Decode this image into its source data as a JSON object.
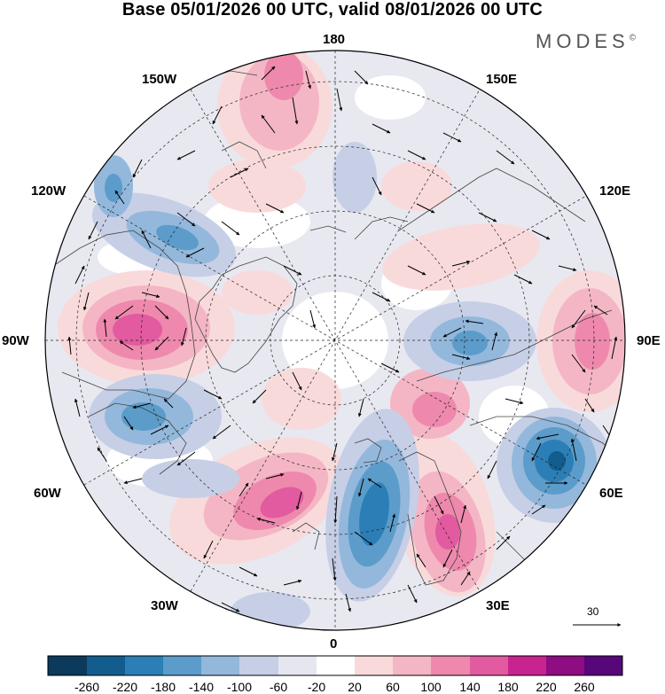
{
  "title": "Base 05/01/2026 00 UTC, valid 08/01/2026 00 UTC",
  "brand": "MODES",
  "brand_mark": "©",
  "longitude_labels": {
    "n180": "180",
    "w150": "150W",
    "e150": "150E",
    "w120": "120W",
    "e120": "120E",
    "w90": "90W",
    "e90": "90E",
    "w60": "60W",
    "e60": "60E",
    "w30": "30W",
    "e30": "30E",
    "s0": "0"
  },
  "reference_vector": "30",
  "colorbar": {
    "ticks": [
      "-260",
      "-220",
      "-180",
      "-140",
      "-100",
      "-60",
      "-20",
      "20",
      "60",
      "100",
      "140",
      "180",
      "220",
      "260"
    ],
    "colors": [
      "#0b3a5c",
      "#125d8e",
      "#2b7fb6",
      "#5b9cca",
      "#93b8dc",
      "#c6cfe6",
      "#e6e6f1",
      "#ffffff",
      "#f9dada",
      "#f4b6c5",
      "#ee89ad",
      "#e25a9f",
      "#c7248f",
      "#8f0c83",
      "#57077a"
    ]
  },
  "anomaly_features": [
    {
      "sign": "positive",
      "region": "Central Canada / Hudson Bay",
      "peak": "180"
    },
    {
      "sign": "negative",
      "region": "Western Canada",
      "peak": "-140"
    },
    {
      "sign": "negative",
      "region": "Labrador Sea",
      "peak": "-140"
    },
    {
      "sign": "positive",
      "region": "Greenland Sea",
      "peak": "180"
    },
    {
      "sign": "negative",
      "region": "North Atlantic / British Isles",
      "peak": "-220"
    },
    {
      "sign": "positive",
      "region": "Scandinavia / Baltic",
      "peak": "140"
    },
    {
      "sign": "negative",
      "region": "Caspian / Central Asia",
      "peak": "-220"
    },
    {
      "sign": "positive",
      "region": "Mongolia / China",
      "peak": "140"
    },
    {
      "sign": "negative",
      "region": "Central Siberia",
      "peak": "-100"
    },
    {
      "sign": "positive",
      "region": "Bering Sea",
      "peak": "140"
    }
  ]
}
